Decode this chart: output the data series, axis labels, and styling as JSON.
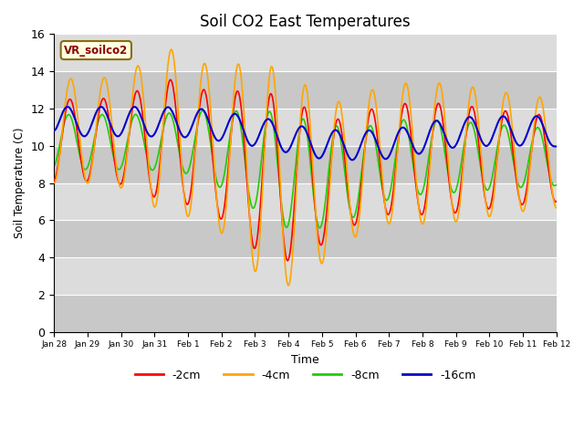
{
  "title": "Soil CO2 East Temperatures",
  "xlabel": "Time",
  "ylabel": "Soil Temperature (C)",
  "ylim": [
    0,
    16
  ],
  "annotation": "VR_soilco2",
  "legend_labels": [
    "-2cm",
    "-4cm",
    "-8cm",
    "-16cm"
  ],
  "legend_colors": [
    "#ff0000",
    "#ffa500",
    "#22cc00",
    "#0000cc"
  ],
  "plot_bg": "#dcdcdc",
  "fig_bg": "#ffffff",
  "xtick_labels": [
    "Jan 28",
    "Jan 29",
    "Jan 30",
    "Jan 31",
    "Feb 1",
    "Feb 2",
    "Feb 3",
    "Feb 4",
    "Feb 5",
    "Feb 6",
    "Feb 7",
    "Feb 8",
    "Feb 9",
    "Feb 10",
    "Feb 11",
    "Feb 12"
  ],
  "grid_color": "#ffffff",
  "band_color_dark": "#c8c8c8",
  "band_color_light": "#dcdcdc",
  "title_fontsize": 12
}
